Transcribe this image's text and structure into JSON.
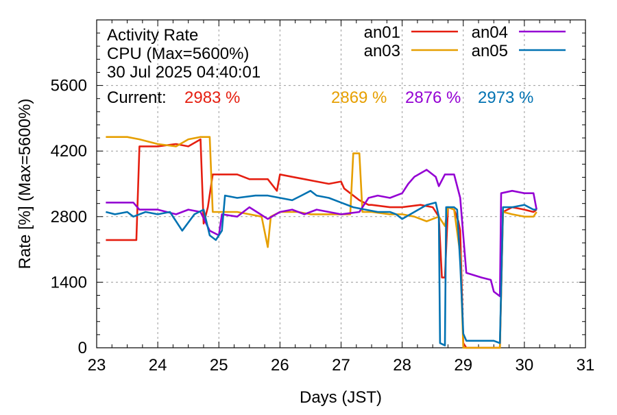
{
  "chart_data": {
    "type": "line",
    "title_lines": [
      "Activity Rate",
      "CPU (Max=5600%)",
      "30 Jul 2025 04:40:01"
    ],
    "current_label": "Current:",
    "current_values": [
      {
        "series": "an01",
        "text": "2983 %"
      },
      {
        "series": "an03",
        "text": "2869 %"
      },
      {
        "series": "an04",
        "text": "2876 %"
      },
      {
        "series": "an05",
        "text": "2973 %"
      }
    ],
    "xlabel": "Days (JST)",
    "ylabel": "Rate [%]  (Max=5600%)",
    "xlim": [
      23,
      31
    ],
    "ylim": [
      0,
      7000
    ],
    "x_ticks": [
      23,
      24,
      25,
      26,
      27,
      28,
      29,
      30,
      31
    ],
    "y_ticks": [
      0,
      1400,
      2800,
      4200,
      5600
    ],
    "grid": true,
    "legend_position": "top-right",
    "series": [
      {
        "name": "an01",
        "color": "#e51e10",
        "points": [
          [
            23.15,
            2300
          ],
          [
            23.6,
            2300
          ],
          [
            23.65,
            2300
          ],
          [
            23.7,
            4300
          ],
          [
            24.0,
            4300
          ],
          [
            24.3,
            4350
          ],
          [
            24.5,
            4300
          ],
          [
            24.7,
            4450
          ],
          [
            24.75,
            2650
          ],
          [
            24.82,
            3000
          ],
          [
            24.9,
            3700
          ],
          [
            25.3,
            3700
          ],
          [
            25.5,
            3600
          ],
          [
            25.8,
            3600
          ],
          [
            25.95,
            3350
          ],
          [
            26.0,
            3700
          ],
          [
            26.2,
            3650
          ],
          [
            26.4,
            3600
          ],
          [
            26.6,
            3550
          ],
          [
            26.8,
            3500
          ],
          [
            27.0,
            3550
          ],
          [
            27.05,
            3400
          ],
          [
            27.3,
            3150
          ],
          [
            27.45,
            3050
          ],
          [
            27.5,
            3050
          ],
          [
            27.8,
            3000
          ],
          [
            28.0,
            3000
          ],
          [
            28.3,
            3050
          ],
          [
            28.5,
            3000
          ],
          [
            28.6,
            2800
          ],
          [
            28.65,
            1500
          ],
          [
            28.7,
            1500
          ],
          [
            28.75,
            3000
          ],
          [
            28.85,
            2950
          ],
          [
            28.92,
            2700
          ],
          [
            28.95,
            2500
          ],
          [
            29.0,
            100
          ],
          [
            29.05,
            0
          ],
          [
            29.4,
            0
          ],
          [
            29.6,
            0
          ],
          [
            29.65,
            2900
          ],
          [
            29.8,
            3000
          ],
          [
            30.0,
            2950
          ],
          [
            30.15,
            2900
          ],
          [
            30.2,
            2950
          ]
        ]
      },
      {
        "name": "an03",
        "color": "#e69f00",
        "points": [
          [
            23.15,
            4500
          ],
          [
            23.5,
            4500
          ],
          [
            23.7,
            4450
          ],
          [
            24.0,
            4350
          ],
          [
            24.3,
            4300
          ],
          [
            24.5,
            4450
          ],
          [
            24.7,
            4500
          ],
          [
            24.85,
            4500
          ],
          [
            24.9,
            2900
          ],
          [
            25.3,
            2900
          ],
          [
            25.5,
            2850
          ],
          [
            25.7,
            2800
          ],
          [
            25.8,
            2150
          ],
          [
            25.85,
            2800
          ],
          [
            26.0,
            2900
          ],
          [
            26.3,
            2900
          ],
          [
            26.5,
            2850
          ],
          [
            26.8,
            2850
          ],
          [
            27.0,
            2850
          ],
          [
            27.15,
            2850
          ],
          [
            27.2,
            4150
          ],
          [
            27.3,
            4150
          ],
          [
            27.35,
            2900
          ],
          [
            27.5,
            2900
          ],
          [
            27.8,
            2850
          ],
          [
            28.0,
            2850
          ],
          [
            28.2,
            2800
          ],
          [
            28.4,
            2700
          ],
          [
            28.6,
            2800
          ],
          [
            28.7,
            2600
          ],
          [
            28.75,
            3000
          ],
          [
            28.85,
            2950
          ],
          [
            28.95,
            2000
          ],
          [
            29.0,
            0
          ],
          [
            29.05,
            0
          ],
          [
            29.4,
            0
          ],
          [
            29.6,
            0
          ],
          [
            29.65,
            2900
          ],
          [
            29.8,
            2850
          ],
          [
            30.0,
            2800
          ],
          [
            30.15,
            2800
          ],
          [
            30.2,
            2900
          ]
        ]
      },
      {
        "name": "an04",
        "color": "#9400d3",
        "points": [
          [
            23.15,
            3100
          ],
          [
            23.6,
            3100
          ],
          [
            23.7,
            2950
          ],
          [
            24.0,
            2950
          ],
          [
            24.3,
            2850
          ],
          [
            24.5,
            2950
          ],
          [
            24.7,
            2900
          ],
          [
            24.85,
            2500
          ],
          [
            25.0,
            2400
          ],
          [
            25.05,
            2850
          ],
          [
            25.3,
            2800
          ],
          [
            25.5,
            3000
          ],
          [
            25.8,
            2750
          ],
          [
            26.0,
            2900
          ],
          [
            26.2,
            2950
          ],
          [
            26.4,
            2850
          ],
          [
            26.6,
            2950
          ],
          [
            26.8,
            2900
          ],
          [
            27.0,
            2850
          ],
          [
            27.3,
            2900
          ],
          [
            27.45,
            3200
          ],
          [
            27.6,
            3250
          ],
          [
            27.8,
            3200
          ],
          [
            28.0,
            3300
          ],
          [
            28.1,
            3500
          ],
          [
            28.2,
            3650
          ],
          [
            28.4,
            3800
          ],
          [
            28.55,
            3650
          ],
          [
            28.6,
            3450
          ],
          [
            28.7,
            3700
          ],
          [
            28.85,
            3700
          ],
          [
            28.95,
            3200
          ],
          [
            29.05,
            1600
          ],
          [
            29.3,
            1500
          ],
          [
            29.45,
            1450
          ],
          [
            29.5,
            1200
          ],
          [
            29.6,
            1100
          ],
          [
            29.62,
            3300
          ],
          [
            29.8,
            3350
          ],
          [
            30.0,
            3300
          ],
          [
            30.15,
            3300
          ],
          [
            30.2,
            2950
          ]
        ]
      },
      {
        "name": "an05",
        "color": "#0072b2",
        "points": [
          [
            23.15,
            2900
          ],
          [
            23.3,
            2850
          ],
          [
            23.5,
            2900
          ],
          [
            23.6,
            2800
          ],
          [
            23.8,
            2900
          ],
          [
            24.0,
            2850
          ],
          [
            24.2,
            2900
          ],
          [
            24.4,
            2500
          ],
          [
            24.6,
            2850
          ],
          [
            24.75,
            2950
          ],
          [
            24.85,
            2400
          ],
          [
            24.95,
            2300
          ],
          [
            25.05,
            2500
          ],
          [
            25.1,
            3250
          ],
          [
            25.3,
            3200
          ],
          [
            25.6,
            3250
          ],
          [
            25.8,
            3250
          ],
          [
            26.0,
            3200
          ],
          [
            26.2,
            3150
          ],
          [
            26.35,
            3250
          ],
          [
            26.5,
            3350
          ],
          [
            26.6,
            3250
          ],
          [
            26.8,
            3200
          ],
          [
            27.0,
            3100
          ],
          [
            27.2,
            3000
          ],
          [
            27.4,
            2950
          ],
          [
            27.6,
            2900
          ],
          [
            27.8,
            2900
          ],
          [
            27.9,
            2850
          ],
          [
            28.0,
            2750
          ],
          [
            28.2,
            2900
          ],
          [
            28.4,
            3050
          ],
          [
            28.55,
            3100
          ],
          [
            28.6,
            2800
          ],
          [
            28.62,
            100
          ],
          [
            28.7,
            50
          ],
          [
            28.72,
            3000
          ],
          [
            28.85,
            3000
          ],
          [
            28.9,
            2950
          ],
          [
            28.95,
            1800
          ],
          [
            29.0,
            300
          ],
          [
            29.05,
            150
          ],
          [
            29.5,
            150
          ],
          [
            29.6,
            100
          ],
          [
            29.65,
            3000
          ],
          [
            29.8,
            3000
          ],
          [
            30.0,
            3050
          ],
          [
            30.15,
            2950
          ],
          [
            30.2,
            2950
          ]
        ]
      }
    ]
  }
}
